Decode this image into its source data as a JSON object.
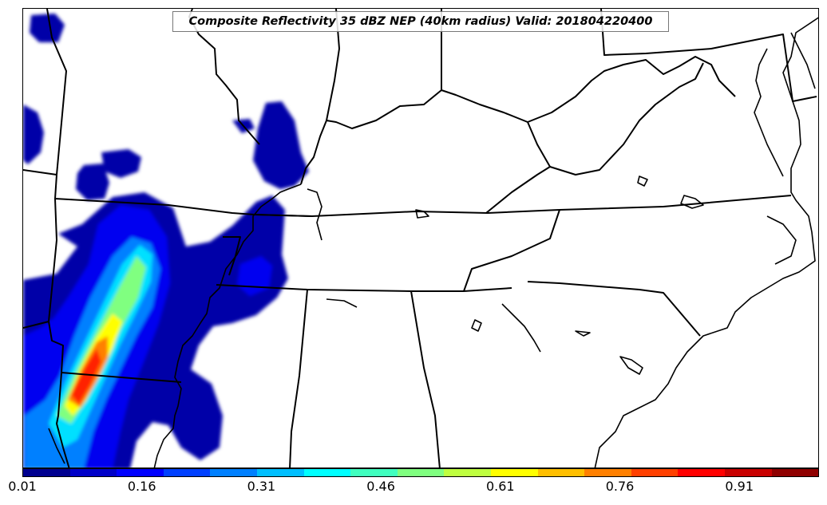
{
  "map": {
    "title": "Composite Reflectivity 35 dBZ NEP (40km radius) Valid: 201804220400",
    "region": "southeastern United States",
    "colors": {
      "border": "#000000",
      "background": "#ffffff",
      "ocean": "#ffffff"
    }
  },
  "colorbar": {
    "colormap": "jet",
    "colors": [
      "#00008f",
      "#0000c8",
      "#0000ff",
      "#0040ff",
      "#0080ff",
      "#00bfff",
      "#00ffff",
      "#40ffbf",
      "#80ff80",
      "#bfff40",
      "#ffff00",
      "#ffbf00",
      "#ff8000",
      "#ff4000",
      "#ff0000",
      "#c80000",
      "#8f0000"
    ],
    "tick_labels": [
      "0.01",
      "0.16",
      "0.31",
      "0.46",
      "0.61",
      "0.76",
      "0.91"
    ],
    "tick_values": [
      0.01,
      0.16,
      0.31,
      0.46,
      0.61,
      0.76,
      0.91
    ],
    "range": [
      0.01,
      1.01
    ]
  }
}
